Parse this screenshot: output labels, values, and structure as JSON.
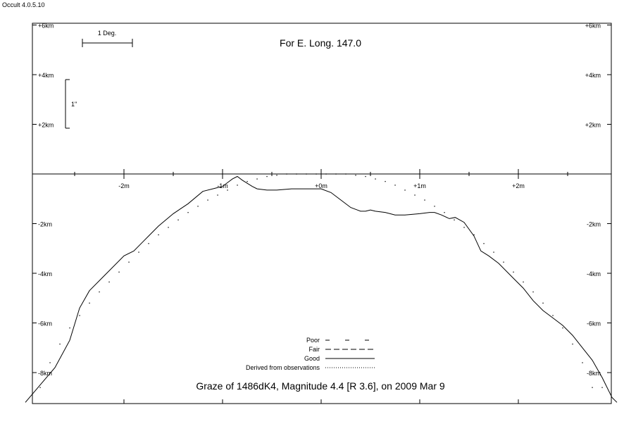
{
  "app": {
    "title": "Occult 4.0.5.10"
  },
  "chart_data": {
    "type": "line",
    "title": "Graze of  1486dK4,  Magnitude 4.4 [R 3.6],  on 2009 Mar  9",
    "subtitle": "For E. Long. 147.0",
    "xlabel": "",
    "ylabel": "",
    "x_unit": "m",
    "y_unit": "km",
    "xlim": [
      -3.0,
      3.0
    ],
    "ylim": [
      -9.2,
      6.2
    ],
    "x_ticks": [
      {
        "value": -2,
        "label": "-2m"
      },
      {
        "value": -1,
        "label": "-1m"
      },
      {
        "value": 0,
        "label": "+0m"
      },
      {
        "value": 1,
        "label": "+1m"
      },
      {
        "value": 2,
        "label": "+2m"
      }
    ],
    "y_ticks": [
      {
        "value": 6,
        "label": "+6km"
      },
      {
        "value": 4,
        "label": "+4km"
      },
      {
        "value": 2,
        "label": "+2km"
      },
      {
        "value": -2,
        "label": "-2km"
      },
      {
        "value": -4,
        "label": "-4km"
      },
      {
        "value": -6,
        "label": "-6km"
      },
      {
        "value": -8,
        "label": "-8km"
      }
    ],
    "scale_bars": {
      "degree": {
        "label": "1 Deg."
      },
      "arcsec": {
        "label": "1\""
      }
    },
    "grid": false,
    "legend_position": "bottom-center",
    "legend": [
      {
        "label": "Poor",
        "style": "poor"
      },
      {
        "label": "Fair",
        "style": "fair"
      },
      {
        "label": "Good",
        "style": "good"
      },
      {
        "label": "Derived from observations",
        "style": "derived"
      }
    ],
    "series": [
      {
        "name": "Good",
        "style": "solid",
        "x": [
          -3.0,
          -2.85,
          -2.7,
          -2.55,
          -2.45,
          -2.35,
          -2.2,
          -2.0,
          -1.9,
          -1.8,
          -1.75,
          -1.65,
          -1.5,
          -1.35,
          -1.2,
          -1.05,
          -1.0,
          -0.9,
          -0.85,
          -0.8,
          -0.7,
          -0.65,
          -0.55,
          -0.45,
          -0.3,
          -0.15,
          0.0,
          0.1,
          0.2,
          0.3,
          0.4,
          0.45,
          0.5,
          0.55,
          0.65,
          0.75,
          0.85,
          1.0,
          1.1,
          1.15,
          1.22,
          1.3,
          1.36,
          1.45,
          1.55,
          1.62,
          1.7,
          1.8,
          1.95,
          2.05,
          2.15,
          2.25,
          2.35,
          2.45,
          2.55,
          2.65,
          2.75,
          2.85,
          2.95,
          3.0
        ],
        "y": [
          -9.2,
          -8.5,
          -7.8,
          -6.7,
          -5.4,
          -4.7,
          -4.1,
          -3.3,
          -3.1,
          -2.7,
          -2.5,
          -2.1,
          -1.6,
          -1.2,
          -0.7,
          -0.55,
          -0.5,
          -0.2,
          -0.1,
          -0.25,
          -0.5,
          -0.6,
          -0.65,
          -0.65,
          -0.6,
          -0.6,
          -0.6,
          -0.75,
          -1.05,
          -1.35,
          -1.5,
          -1.5,
          -1.45,
          -1.5,
          -1.55,
          -1.65,
          -1.65,
          -1.6,
          -1.55,
          -1.55,
          -1.65,
          -1.8,
          -1.75,
          -1.95,
          -2.5,
          -3.1,
          -3.3,
          -3.6,
          -4.2,
          -4.6,
          -5.1,
          -5.5,
          -5.8,
          -6.1,
          -6.5,
          -7.0,
          -7.5,
          -8.2,
          -9.0,
          -9.2
        ]
      },
      {
        "name": "Derived from observations",
        "style": "dotted",
        "x": [
          -2.85,
          -2.75,
          -2.65,
          -2.55,
          -2.45,
          -2.35,
          -2.25,
          -2.15,
          -2.05,
          -1.95,
          -1.85,
          -1.75,
          -1.65,
          -1.55,
          -1.45,
          -1.35,
          -1.25,
          -1.15,
          -1.05,
          -0.95,
          -0.85,
          -0.75,
          -0.65,
          -0.55,
          -0.45,
          -0.35,
          -0.25,
          -0.15,
          -0.05,
          0.05,
          0.15,
          0.25,
          0.35,
          0.45,
          0.55,
          0.65,
          0.75,
          0.85,
          0.95,
          1.05,
          1.15,
          1.25,
          1.35,
          1.45,
          1.55,
          1.65,
          1.75,
          1.85,
          1.95,
          2.05,
          2.15,
          2.25,
          2.35,
          2.45,
          2.55,
          2.65,
          2.75,
          2.85,
          2.95
        ],
        "y": [
          -8.6,
          -7.6,
          -6.85,
          -6.2,
          -5.7,
          -5.2,
          -4.75,
          -4.35,
          -3.95,
          -3.55,
          -3.15,
          -2.8,
          -2.45,
          -2.15,
          -1.85,
          -1.55,
          -1.3,
          -1.05,
          -0.85,
          -0.65,
          -0.45,
          -0.3,
          -0.2,
          -0.1,
          -0.05,
          0.0,
          0.0,
          0.0,
          0.0,
          0.0,
          0.0,
          0.0,
          -0.05,
          -0.1,
          -0.2,
          -0.3,
          -0.45,
          -0.65,
          -0.85,
          -1.05,
          -1.3,
          -1.55,
          -1.85,
          -2.15,
          -2.45,
          -2.8,
          -3.15,
          -3.55,
          -3.95,
          -4.35,
          -4.75,
          -5.2,
          -5.7,
          -6.2,
          -6.85,
          -7.6,
          -8.6,
          -8.6,
          -8.6
        ]
      }
    ]
  }
}
